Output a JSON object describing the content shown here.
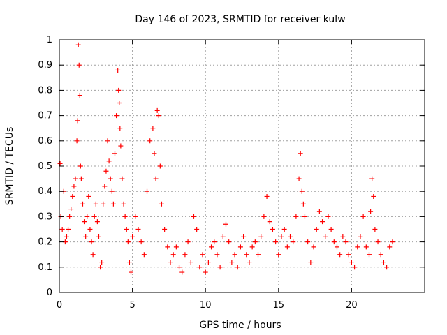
{
  "chart_data": {
    "type": "scatter",
    "title": "Day 146 of 2023, SRMTID for receiver kulw",
    "xlabel": "GPS time / hours",
    "ylabel": "SRMTID / TECUs",
    "xlim": [
      0,
      25
    ],
    "ylim": [
      0,
      1
    ],
    "xticks": [
      0,
      5,
      10,
      15,
      20
    ],
    "yticks": [
      0,
      0.1,
      0.2,
      0.3,
      0.4,
      0.5,
      0.6,
      0.7,
      0.8,
      0.9,
      1
    ],
    "ytick_labels": [
      "0",
      "0.1",
      "0.2",
      "0.3",
      "0.4",
      "0.5",
      "0.6",
      "0.7",
      "0.8",
      "0.9",
      "1"
    ],
    "grid": true,
    "marker": "+",
    "color": "#ff0000",
    "series": [
      {
        "name": "SRMTID",
        "x": [
          0.05,
          0.1,
          0.2,
          0.3,
          0.4,
          0.5,
          0.6,
          0.7,
          0.8,
          0.9,
          1.0,
          1.1,
          1.2,
          1.25,
          1.3,
          1.35,
          1.4,
          1.45,
          1.5,
          1.6,
          1.7,
          1.8,
          1.9,
          2.0,
          2.1,
          2.2,
          2.3,
          2.4,
          2.5,
          2.6,
          2.7,
          2.8,
          2.9,
          3.0,
          3.1,
          3.2,
          3.3,
          3.4,
          3.5,
          3.6,
          3.7,
          3.8,
          3.9,
          4.0,
          4.05,
          4.1,
          4.15,
          4.2,
          4.3,
          4.4,
          4.5,
          4.6,
          4.7,
          4.8,
          4.9,
          5.0,
          5.2,
          5.4,
          5.6,
          5.8,
          6.0,
          6.2,
          6.4,
          6.5,
          6.6,
          6.7,
          6.8,
          6.9,
          7.0,
          7.2,
          7.4,
          7.6,
          7.8,
          8.0,
          8.2,
          8.4,
          8.6,
          8.8,
          9.0,
          9.2,
          9.4,
          9.6,
          9.8,
          10.0,
          10.2,
          10.4,
          10.6,
          10.8,
          11.0,
          11.2,
          11.4,
          11.6,
          11.8,
          12.0,
          12.2,
          12.4,
          12.6,
          12.8,
          13.0,
          13.2,
          13.4,
          13.6,
          13.8,
          14.0,
          14.2,
          14.4,
          14.6,
          14.8,
          15.0,
          15.2,
          15.4,
          15.6,
          15.8,
          16.0,
          16.2,
          16.4,
          16.5,
          16.6,
          16.7,
          16.8,
          17.0,
          17.2,
          17.4,
          17.6,
          17.8,
          18.0,
          18.2,
          18.4,
          18.6,
          18.8,
          19.0,
          19.2,
          19.4,
          19.6,
          19.8,
          20.0,
          20.2,
          20.4,
          20.6,
          20.8,
          21.0,
          21.2,
          21.3,
          21.4,
          21.5,
          21.6,
          21.8,
          22.0,
          22.2,
          22.4,
          22.6,
          22.8
        ],
        "y": [
          0.51,
          0.3,
          0.25,
          0.4,
          0.2,
          0.22,
          0.25,
          0.3,
          0.33,
          0.38,
          0.42,
          0.45,
          0.6,
          0.68,
          0.98,
          0.9,
          0.78,
          0.5,
          0.45,
          0.35,
          0.28,
          0.22,
          0.3,
          0.38,
          0.25,
          0.2,
          0.15,
          0.3,
          0.35,
          0.28,
          0.22,
          0.1,
          0.12,
          0.35,
          0.42,
          0.48,
          0.6,
          0.52,
          0.45,
          0.4,
          0.35,
          0.55,
          0.7,
          0.88,
          0.8,
          0.75,
          0.65,
          0.58,
          0.45,
          0.35,
          0.3,
          0.25,
          0.2,
          0.12,
          0.08,
          0.22,
          0.3,
          0.25,
          0.2,
          0.15,
          0.4,
          0.6,
          0.65,
          0.55,
          0.45,
          0.72,
          0.7,
          0.5,
          0.35,
          0.25,
          0.18,
          0.12,
          0.15,
          0.18,
          0.1,
          0.08,
          0.15,
          0.2,
          0.12,
          0.3,
          0.25,
          0.1,
          0.15,
          0.08,
          0.12,
          0.18,
          0.2,
          0.15,
          0.1,
          0.22,
          0.27,
          0.2,
          0.12,
          0.15,
          0.1,
          0.18,
          0.22,
          0.15,
          0.12,
          0.18,
          0.2,
          0.15,
          0.22,
          0.3,
          0.38,
          0.28,
          0.25,
          0.2,
          0.15,
          0.22,
          0.25,
          0.18,
          0.22,
          0.2,
          0.3,
          0.45,
          0.55,
          0.4,
          0.35,
          0.3,
          0.2,
          0.12,
          0.18,
          0.25,
          0.32,
          0.28,
          0.22,
          0.3,
          0.25,
          0.2,
          0.18,
          0.15,
          0.22,
          0.2,
          0.15,
          0.12,
          0.1,
          0.18,
          0.22,
          0.3,
          0.18,
          0.15,
          0.32,
          0.45,
          0.38,
          0.25,
          0.2,
          0.15,
          0.12,
          0.1,
          0.18,
          0.2
        ]
      }
    ]
  }
}
